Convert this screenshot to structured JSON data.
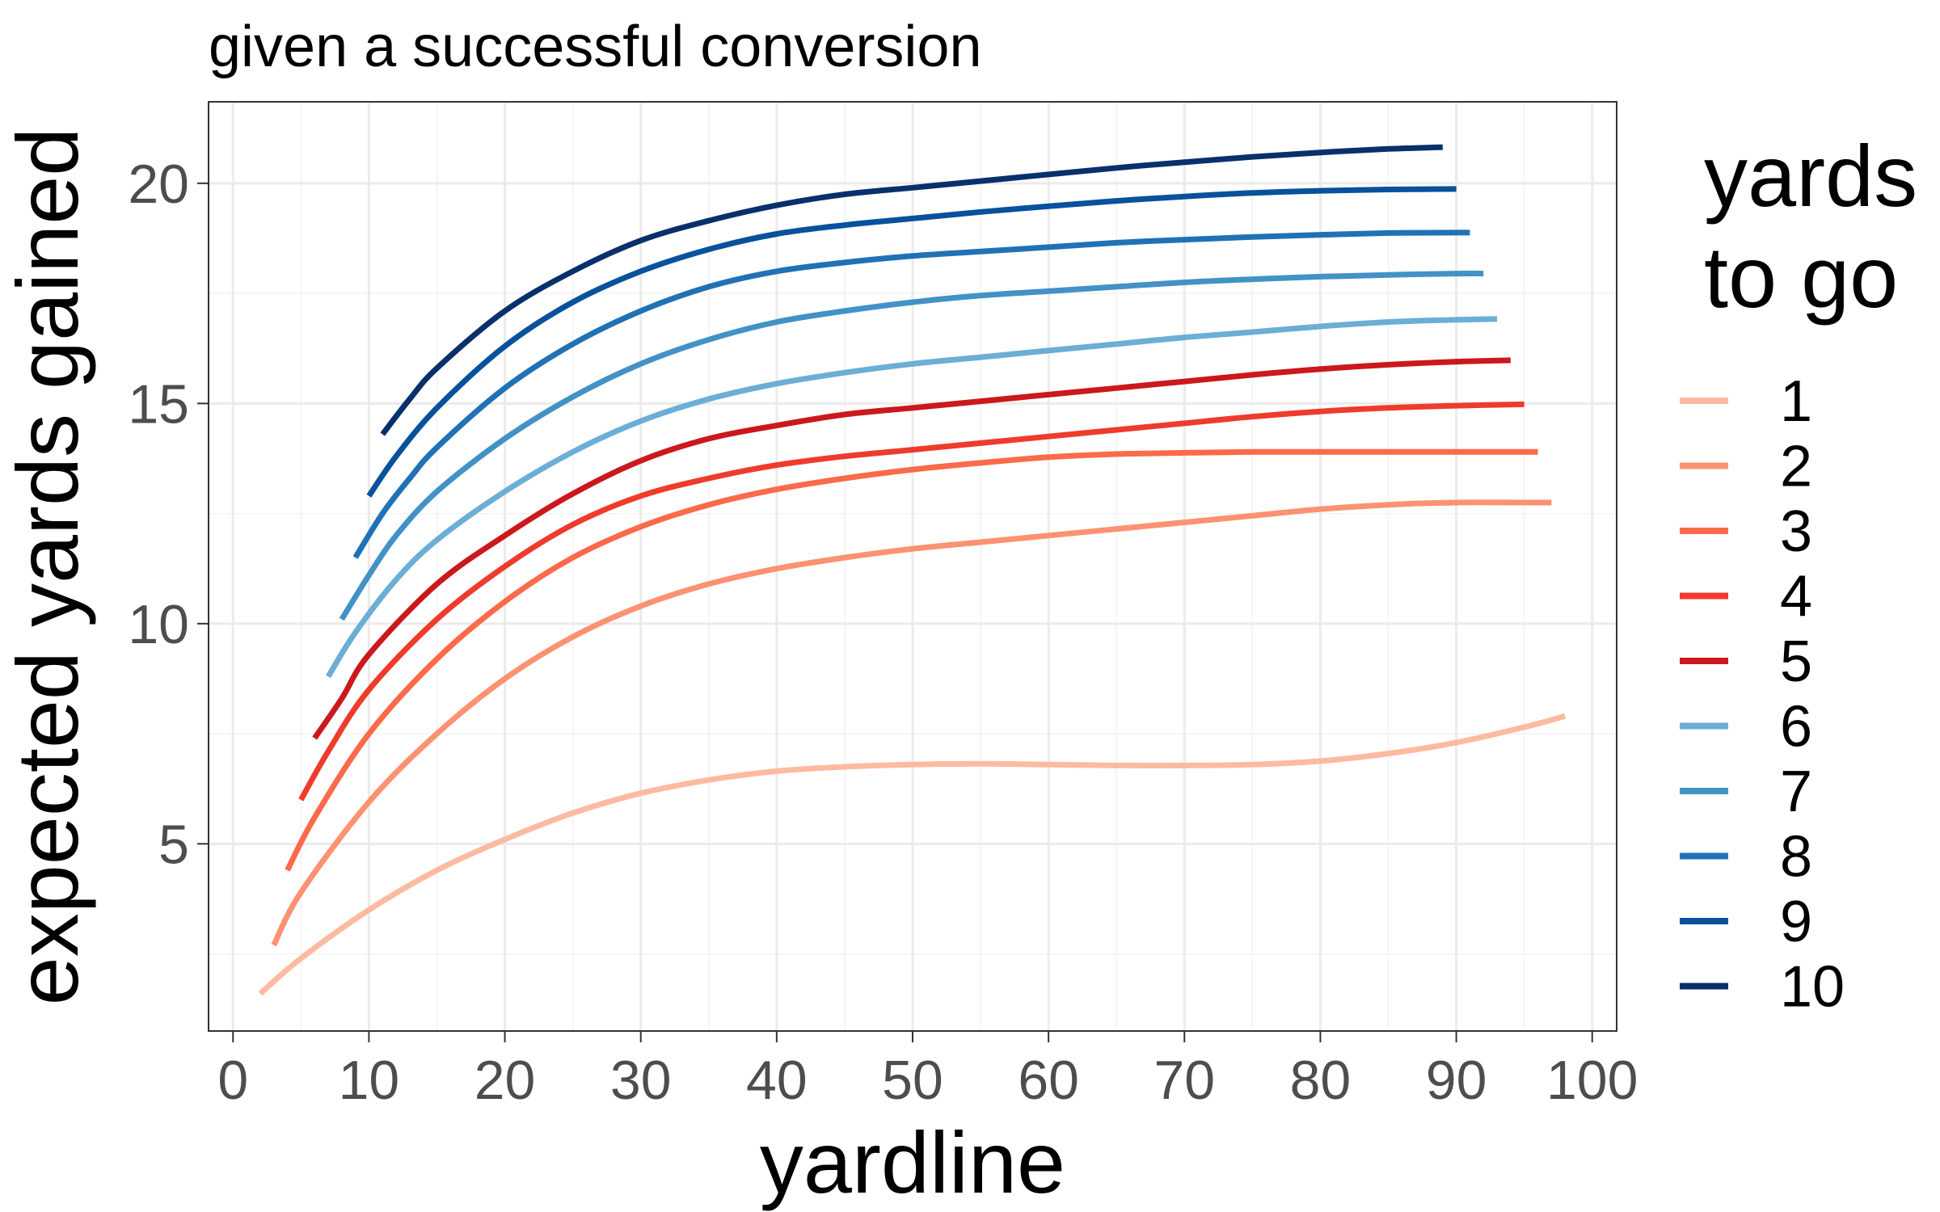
{
  "chart_data": {
    "type": "line",
    "title": "given a successful conversion",
    "xlabel": "yardline",
    "ylabel": "expected yards gained",
    "xlim": [
      -1.8,
      101.8
    ],
    "ylim": [
      0.75,
      21.85
    ],
    "x_ticks": [
      0,
      10,
      20,
      30,
      40,
      50,
      60,
      70,
      80,
      90,
      100
    ],
    "y_ticks": [
      5,
      10,
      15,
      20
    ],
    "grid": true,
    "legend": {
      "title_lines": [
        "yards",
        "to go"
      ],
      "placement": "right"
    },
    "series": [
      {
        "name": "1",
        "color": "#FCBBA1",
        "x": [
          2,
          5,
          10,
          15,
          20,
          25,
          30,
          35,
          40,
          45,
          50,
          55,
          60,
          65,
          70,
          75,
          80,
          85,
          90,
          95,
          98
        ],
        "y": [
          1.6,
          2.4,
          3.5,
          4.4,
          5.1,
          5.7,
          6.15,
          6.45,
          6.65,
          6.75,
          6.8,
          6.82,
          6.8,
          6.78,
          6.78,
          6.8,
          6.88,
          7.05,
          7.3,
          7.65,
          7.9
        ]
      },
      {
        "name": "2",
        "color": "#FC9272",
        "x": [
          3,
          5,
          10,
          15,
          20,
          25,
          30,
          35,
          40,
          45,
          50,
          55,
          60,
          65,
          70,
          75,
          80,
          85,
          90,
          95,
          97
        ],
        "y": [
          2.7,
          3.9,
          5.95,
          7.5,
          8.75,
          9.7,
          10.4,
          10.9,
          11.25,
          11.5,
          11.7,
          11.85,
          12.0,
          12.15,
          12.3,
          12.45,
          12.6,
          12.7,
          12.75,
          12.75,
          12.75
        ]
      },
      {
        "name": "3",
        "color": "#FB6A4A",
        "x": [
          4,
          6,
          10,
          15,
          20,
          25,
          30,
          35,
          40,
          45,
          50,
          55,
          60,
          65,
          70,
          75,
          80,
          85,
          90,
          96
        ],
        "y": [
          4.4,
          5.6,
          7.5,
          9.2,
          10.5,
          11.5,
          12.2,
          12.7,
          13.05,
          13.3,
          13.5,
          13.65,
          13.78,
          13.85,
          13.88,
          13.9,
          13.9,
          13.9,
          13.9,
          13.9
        ]
      },
      {
        "name": "4",
        "color": "#EF3B2C",
        "x": [
          5,
          7,
          10,
          15,
          20,
          25,
          30,
          35,
          40,
          45,
          50,
          55,
          60,
          65,
          70,
          75,
          80,
          85,
          90,
          95
        ],
        "y": [
          6.0,
          7.1,
          8.5,
          10.1,
          11.3,
          12.25,
          12.9,
          13.3,
          13.6,
          13.8,
          13.95,
          14.1,
          14.25,
          14.4,
          14.55,
          14.7,
          14.82,
          14.9,
          14.95,
          14.98
        ]
      },
      {
        "name": "5",
        "color": "#CB181D",
        "x": [
          6,
          8,
          10,
          15,
          20,
          25,
          30,
          35,
          40,
          45,
          50,
          55,
          60,
          65,
          70,
          75,
          80,
          85,
          90,
          94
        ],
        "y": [
          7.4,
          8.3,
          9.3,
          10.9,
          12.0,
          12.95,
          13.7,
          14.2,
          14.5,
          14.75,
          14.9,
          15.05,
          15.2,
          15.35,
          15.5,
          15.65,
          15.78,
          15.88,
          15.95,
          15.98
        ]
      },
      {
        "name": "6",
        "color": "#6BAED6",
        "x": [
          7,
          9,
          12,
          15,
          20,
          25,
          30,
          35,
          40,
          45,
          50,
          55,
          60,
          65,
          70,
          75,
          80,
          85,
          90,
          93
        ],
        "y": [
          8.8,
          9.8,
          11.0,
          11.9,
          13.0,
          13.9,
          14.6,
          15.1,
          15.45,
          15.7,
          15.9,
          16.05,
          16.2,
          16.35,
          16.5,
          16.62,
          16.75,
          16.85,
          16.9,
          16.92
        ]
      },
      {
        "name": "7",
        "color": "#4292C6",
        "x": [
          8,
          10,
          12,
          15,
          20,
          25,
          30,
          35,
          40,
          45,
          50,
          55,
          60,
          65,
          70,
          75,
          80,
          85,
          90,
          92
        ],
        "y": [
          10.1,
          11.1,
          12.0,
          13.0,
          14.2,
          15.15,
          15.9,
          16.45,
          16.85,
          17.1,
          17.3,
          17.45,
          17.55,
          17.65,
          17.75,
          17.82,
          17.88,
          17.92,
          17.95,
          17.95
        ]
      },
      {
        "name": "8",
        "color": "#2171B5",
        "x": [
          9,
          11,
          13,
          15,
          20,
          25,
          30,
          35,
          40,
          45,
          50,
          55,
          60,
          65,
          70,
          75,
          80,
          85,
          90,
          91
        ],
        "y": [
          11.5,
          12.5,
          13.3,
          14.0,
          15.35,
          16.35,
          17.1,
          17.65,
          18.0,
          18.2,
          18.35,
          18.45,
          18.55,
          18.65,
          18.72,
          18.78,
          18.83,
          18.87,
          18.88,
          18.88
        ]
      },
      {
        "name": "9",
        "color": "#08519C",
        "x": [
          10,
          12,
          15,
          20,
          25,
          30,
          35,
          40,
          45,
          50,
          55,
          60,
          65,
          70,
          75,
          80,
          85,
          90
        ],
        "y": [
          12.9,
          13.8,
          14.9,
          16.3,
          17.3,
          18.0,
          18.5,
          18.85,
          19.05,
          19.2,
          19.35,
          19.48,
          19.6,
          19.7,
          19.78,
          19.83,
          19.86,
          19.87
        ]
      },
      {
        "name": "10",
        "color": "#08306B",
        "x": [
          11,
          13,
          15,
          20,
          25,
          30,
          35,
          40,
          45,
          50,
          55,
          60,
          65,
          70,
          75,
          80,
          85,
          89
        ],
        "y": [
          14.3,
          15.1,
          15.8,
          17.1,
          18.0,
          18.7,
          19.15,
          19.5,
          19.75,
          19.9,
          20.05,
          20.2,
          20.35,
          20.48,
          20.6,
          20.7,
          20.78,
          20.82
        ]
      }
    ]
  }
}
